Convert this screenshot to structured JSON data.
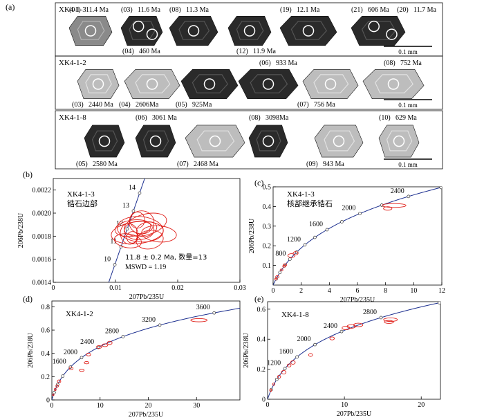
{
  "panel_a": {
    "letter": "(a)",
    "scale_label": "0.1 mm",
    "rows": [
      {
        "sample": "XK4-1-3",
        "grains": [
          {
            "labels": [
              "(01)",
              "11.4 Ma"
            ],
            "lum": "mid"
          },
          {
            "labels": [
              "(03)",
              "11.6 Ma",
              "(04)",
              "460 Ma"
            ],
            "lum": "dark"
          },
          {
            "labels": [
              "(08)",
              "11.3 Ma"
            ],
            "lum": "dark"
          },
          {
            "labels": [
              "(12)",
              "11.9 Ma"
            ],
            "lum": "dark"
          },
          {
            "labels": [
              "(19)",
              "12.1 Ma"
            ],
            "lum": "dark"
          },
          {
            "labels": [
              "(21)",
              "606 Ma",
              "(20)",
              "11.7 Ma"
            ],
            "lum": "dark"
          }
        ]
      },
      {
        "sample": "XK4-1-2",
        "grains": [
          {
            "labels": [
              "(03)",
              "2440 Ma"
            ],
            "lum": "light"
          },
          {
            "labels": [
              "(04)",
              "2606Ma"
            ],
            "lum": "light"
          },
          {
            "labels": [
              "(05)",
              "925Ma"
            ],
            "lum": "dark"
          },
          {
            "labels": [
              "(06)",
              "933 Ma"
            ],
            "lum": "dark"
          },
          {
            "labels": [
              "(07)",
              "756 Ma"
            ],
            "lum": "light"
          },
          {
            "labels": [
              "(08)",
              "752 Ma"
            ],
            "lum": "light"
          }
        ]
      },
      {
        "sample": "XK4-1-8",
        "grains": [
          {
            "labels": [
              "(05)",
              "2580 Ma"
            ],
            "lum": "dark"
          },
          {
            "labels": [
              "(06)",
              "3061 Ma"
            ],
            "lum": "dark"
          },
          {
            "labels": [
              "(07)",
              "2468 Ma"
            ],
            "lum": "light"
          },
          {
            "labels": [
              "(08)",
              "3098Ma"
            ],
            "lum": "dark"
          },
          {
            "labels": [
              "(09)",
              "943 Ma"
            ],
            "lum": "light"
          },
          {
            "labels": [
              "(10)",
              "629 Ma"
            ],
            "lum": "light"
          }
        ]
      }
    ]
  },
  "colors": {
    "concordia": "#1c2f8f",
    "ellipse": "#e0201a",
    "axis": "#000000",
    "marker": "#333333"
  },
  "chart_data": [
    {
      "panel": "(b)",
      "type": "scatter",
      "title": "XK4-1-3",
      "subtitle": "锆石边部",
      "xlabel": "207Pb/235U",
      "ylabel": "206Pb/238U",
      "xlim": [
        0,
        0.03
      ],
      "ylim": [
        0.0014,
        0.0023
      ],
      "x_ticks": [
        0,
        0.01,
        0.02,
        0.03
      ],
      "x_tick_labels": [
        "0",
        "0.01",
        "0.02",
        "0.03"
      ],
      "y_ticks": [
        0.0014,
        0.0016,
        0.0018,
        0.002,
        0.0022
      ],
      "y_tick_labels": [
        "0.0014",
        "0.0016",
        "0.0018",
        "0.0020",
        "0.0022"
      ],
      "concordia_age_range_ma": [
        9,
        15.5
      ],
      "concordia_markers_ma": [
        10,
        11,
        12,
        13,
        14
      ],
      "concordia_labels_ma": [
        10,
        11,
        12,
        13,
        14
      ],
      "annotation": [
        "11.8 ± 0.2 Ma, 数量=13",
        "MSWD = 1.19"
      ],
      "ellipses": [
        {
          "x": 0.0135,
          "y": 0.00183,
          "rx": 0.0042,
          "ry": 9.5e-05,
          "rot": 6
        },
        {
          "x": 0.014,
          "y": 0.00186,
          "rx": 0.0037,
          "ry": 0.00011,
          "rot": -5
        },
        {
          "x": 0.0128,
          "y": 0.00187,
          "rx": 0.0029,
          "ry": 7e-05,
          "rot": 8
        },
        {
          "x": 0.0138,
          "y": 0.00185,
          "rx": 0.0024,
          "ry": 8e-05,
          "rot": 2
        },
        {
          "x": 0.0148,
          "y": 0.0019,
          "rx": 0.0035,
          "ry": 9e-05,
          "rot": 15
        },
        {
          "x": 0.0142,
          "y": 0.00192,
          "rx": 0.002,
          "ry": 0.0001,
          "rot": 0
        },
        {
          "x": 0.0122,
          "y": 0.00182,
          "rx": 0.0014,
          "ry": 9e-05,
          "rot": 12
        },
        {
          "x": 0.0127,
          "y": 0.00179,
          "rx": 0.0009,
          "ry": 5e-05,
          "rot": 0
        },
        {
          "x": 0.0155,
          "y": 0.00177,
          "rx": 0.0022,
          "ry": 8e-05,
          "rot": 10
        },
        {
          "x": 0.012,
          "y": 0.00176,
          "rx": 0.0022,
          "ry": 6e-05,
          "rot": -8
        },
        {
          "x": 0.017,
          "y": 0.00182,
          "rx": 0.0028,
          "ry": 7e-05,
          "rot": -5
        },
        {
          "x": 0.0135,
          "y": 0.00194,
          "rx": 0.0012,
          "ry": 7e-05,
          "rot": 0
        },
        {
          "x": 0.015,
          "y": 0.00186,
          "rx": 0.0017,
          "ry": 6e-05,
          "rot": 20
        }
      ]
    },
    {
      "panel": "(c)",
      "type": "scatter",
      "title": "XK4-1-3",
      "subtitle": "核部继承锆石",
      "xlabel": "207Pb/235U",
      "ylabel": "206Pb/238U",
      "xlim": [
        0,
        12
      ],
      "ylim": [
        0,
        0.5
      ],
      "x_ticks": [
        0,
        2,
        4,
        6,
        8,
        10,
        12
      ],
      "x_tick_labels": [
        "0",
        "2",
        "4",
        "6",
        "8",
        "10",
        "12"
      ],
      "y_ticks": [
        0.1,
        0.2,
        0.3,
        0.4,
        0.5
      ],
      "y_tick_labels": [
        "0.1",
        "0.2",
        "0.3",
        "0.4",
        "0.5"
      ],
      "concordia_age_range_ma": [
        0,
        2640
      ],
      "concordia_markers_ma": [
        200,
        400,
        600,
        800,
        1000,
        1200,
        1400,
        1600,
        1800,
        2000,
        2200,
        2400,
        2600
      ],
      "concordia_labels_ma": [
        800,
        1200,
        1600,
        2000,
        2400
      ],
      "ellipses": [
        {
          "x": 8.6,
          "y": 0.405,
          "rx": 0.85,
          "ry": 0.01,
          "rot": 0
        },
        {
          "x": 8.15,
          "y": 0.39,
          "rx": 0.3,
          "ry": 0.009,
          "rot": 0
        },
        {
          "x": 1.3,
          "y": 0.15,
          "rx": 0.25,
          "ry": 0.01,
          "rot": 0
        },
        {
          "x": 1.6,
          "y": 0.162,
          "rx": 0.18,
          "ry": 0.008,
          "rot": 0
        },
        {
          "x": 0.85,
          "y": 0.103,
          "rx": 0.12,
          "ry": 0.006,
          "rot": 0
        },
        {
          "x": 0.78,
          "y": 0.096,
          "rx": 0.1,
          "ry": 0.005,
          "rot": 0
        },
        {
          "x": 0.6,
          "y": 0.077,
          "rx": 0.1,
          "ry": 0.005,
          "rot": 0
        },
        {
          "x": 0.3,
          "y": 0.042,
          "rx": 0.12,
          "ry": 0.006,
          "rot": 0
        },
        {
          "x": 0.2,
          "y": 0.03,
          "rx": 0.08,
          "ry": 0.004,
          "rot": 0
        }
      ]
    },
    {
      "panel": "(d)",
      "type": "scatter",
      "title": "XK4-1-2",
      "xlabel": "207Pb/235U",
      "ylabel": "206Pb/238U",
      "xlim": [
        0,
        39
      ],
      "ylim": [
        0,
        0.85
      ],
      "x_ticks": [
        0,
        10,
        20,
        30
      ],
      "x_tick_labels": [
        "0",
        "10",
        "20",
        "30"
      ],
      "y_ticks": [
        0,
        0.2,
        0.4,
        0.6,
        0.8
      ],
      "y_tick_labels": [
        "0",
        "0.2",
        "0.4",
        "0.6",
        "0.8"
      ],
      "concordia_age_range_ma": [
        0,
        3840
      ],
      "concordia_markers_ma": [
        400,
        800,
        1200,
        1600,
        2000,
        2400,
        2800,
        3200,
        3600
      ],
      "concordia_labels_ma": [
        1600,
        2000,
        2400,
        2800,
        3200,
        3600
      ],
      "ellipses": [
        {
          "x": 30.5,
          "y": 0.685,
          "rx": 1.7,
          "ry": 0.014,
          "rot": 0
        },
        {
          "x": 12.0,
          "y": 0.49,
          "rx": 0.5,
          "ry": 0.014,
          "rot": 0
        },
        {
          "x": 11.0,
          "y": 0.47,
          "rx": 0.6,
          "ry": 0.012,
          "rot": 0
        },
        {
          "x": 9.8,
          "y": 0.455,
          "rx": 0.55,
          "ry": 0.012,
          "rot": 0
        },
        {
          "x": 7.6,
          "y": 0.39,
          "rx": 0.45,
          "ry": 0.012,
          "rot": 0
        },
        {
          "x": 7.2,
          "y": 0.32,
          "rx": 0.5,
          "ry": 0.01,
          "rot": 0
        },
        {
          "x": 6.2,
          "y": 0.255,
          "rx": 0.5,
          "ry": 0.01,
          "rot": 0
        },
        {
          "x": 4.0,
          "y": 0.27,
          "rx": 0.4,
          "ry": 0.012,
          "rot": 0
        },
        {
          "x": 1.5,
          "y": 0.16,
          "rx": 0.35,
          "ry": 0.012,
          "rot": 0
        },
        {
          "x": 1.1,
          "y": 0.12,
          "rx": 0.28,
          "ry": 0.01,
          "rot": 0
        },
        {
          "x": 0.7,
          "y": 0.09,
          "rx": 0.2,
          "ry": 0.01,
          "rot": 0
        },
        {
          "x": 0.3,
          "y": 0.045,
          "rx": 0.15,
          "ry": 0.008,
          "rot": 0
        }
      ]
    },
    {
      "panel": "(e)",
      "type": "scatter",
      "title": "XK4-1-8",
      "xlabel": "207Pb/235U",
      "ylabel": "206Pb/238U",
      "xlim": [
        0,
        22.5
      ],
      "ylim": [
        0,
        0.65
      ],
      "x_ticks": [
        0,
        10,
        20
      ],
      "x_tick_labels": [
        "0",
        "10",
        "20"
      ],
      "y_ticks": [
        0,
        0.2,
        0.4,
        0.6
      ],
      "y_tick_labels": [
        "0",
        "0.2",
        "0.4",
        "0.6"
      ],
      "concordia_age_range_ma": [
        0,
        3680
      ],
      "concordia_markers_ma": [
        400,
        800,
        1200,
        1600,
        2000,
        2400,
        2800,
        3200
      ],
      "concordia_labels_ma": [
        1200,
        1600,
        2000,
        2400,
        2800
      ],
      "ellipses": [
        {
          "x": 16.0,
          "y": 0.53,
          "rx": 0.9,
          "ry": 0.012,
          "rot": 0
        },
        {
          "x": 15.8,
          "y": 0.515,
          "rx": 0.6,
          "ry": 0.01,
          "rot": 0
        },
        {
          "x": 11.8,
          "y": 0.495,
          "rx": 0.6,
          "ry": 0.012,
          "rot": 0
        },
        {
          "x": 10.9,
          "y": 0.485,
          "rx": 0.55,
          "ry": 0.012,
          "rot": 0
        },
        {
          "x": 10.2,
          "y": 0.475,
          "rx": 0.5,
          "ry": 0.012,
          "rot": 0
        },
        {
          "x": 8.4,
          "y": 0.405,
          "rx": 0.3,
          "ry": 0.01,
          "rot": 0
        },
        {
          "x": 5.6,
          "y": 0.295,
          "rx": 0.25,
          "ry": 0.01,
          "rot": 0
        },
        {
          "x": 3.3,
          "y": 0.245,
          "rx": 0.3,
          "ry": 0.012,
          "rot": 0
        },
        {
          "x": 2.8,
          "y": 0.225,
          "rx": 0.25,
          "ry": 0.01,
          "rot": 0
        },
        {
          "x": 2.1,
          "y": 0.18,
          "rx": 0.3,
          "ry": 0.012,
          "rot": 0
        },
        {
          "x": 1.5,
          "y": 0.15,
          "rx": 0.2,
          "ry": 0.01,
          "rot": 0
        },
        {
          "x": 0.8,
          "y": 0.1,
          "rx": 0.15,
          "ry": 0.008,
          "rot": 0
        },
        {
          "x": 0.4,
          "y": 0.06,
          "rx": 0.12,
          "ry": 0.008,
          "rot": 0
        }
      ]
    }
  ]
}
